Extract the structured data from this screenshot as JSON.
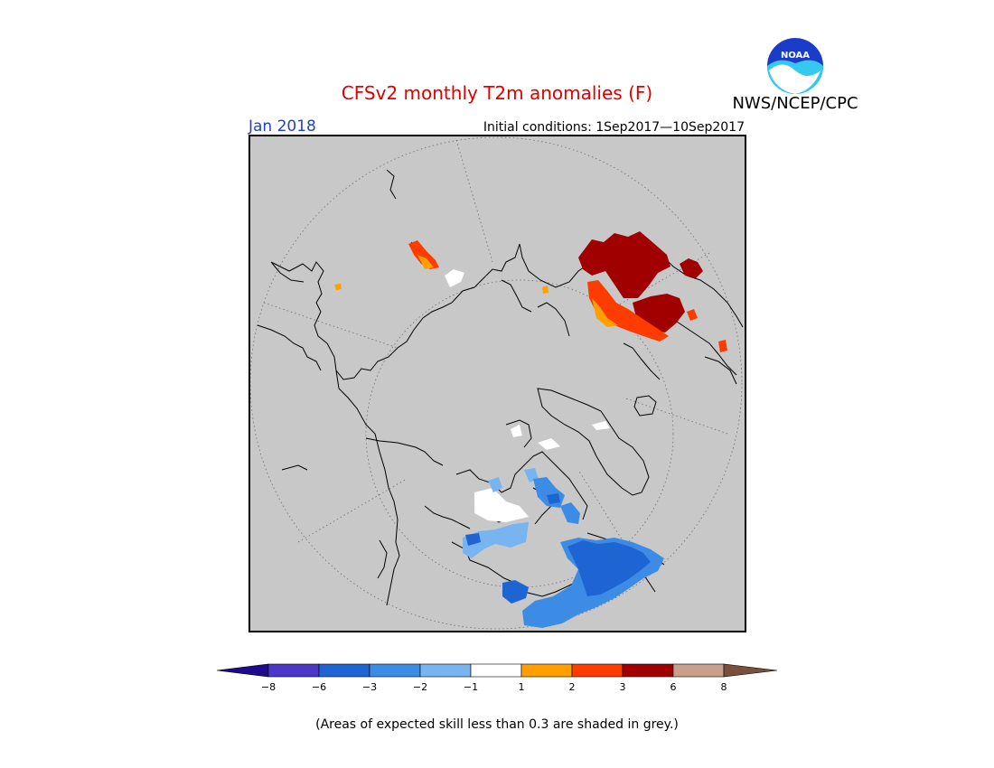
{
  "title": "CFSv2 monthly T2m anomalies (F)",
  "agency": "NWS/NCEP/CPC",
  "logo_text": "NOAA",
  "target_month": "Jan 2018",
  "initial_conditions": "Initial conditions: 1Sep2017—10Sep2017",
  "footnote": "(Areas of expected skill less than 0.3 are shaded in grey.)",
  "map_background_color": "#c8c8c8",
  "colors": {
    "title": "#e00000",
    "month": "#2040d0",
    "grey_low_skill": "#c8c8c8"
  },
  "colorbar": {
    "ticks": [
      "−8",
      "−6",
      "−3",
      "−2",
      "−1",
      "1",
      "2",
      "3",
      "6",
      "8"
    ],
    "colors": [
      "#1e0a8c",
      "#4b38c8",
      "#1e64d2",
      "#3c8ce6",
      "#78b4f0",
      "#ffffff",
      "#ffa000",
      "#ff3c00",
      "#a00000",
      "#c8a08c",
      "#78503c"
    ]
  }
}
